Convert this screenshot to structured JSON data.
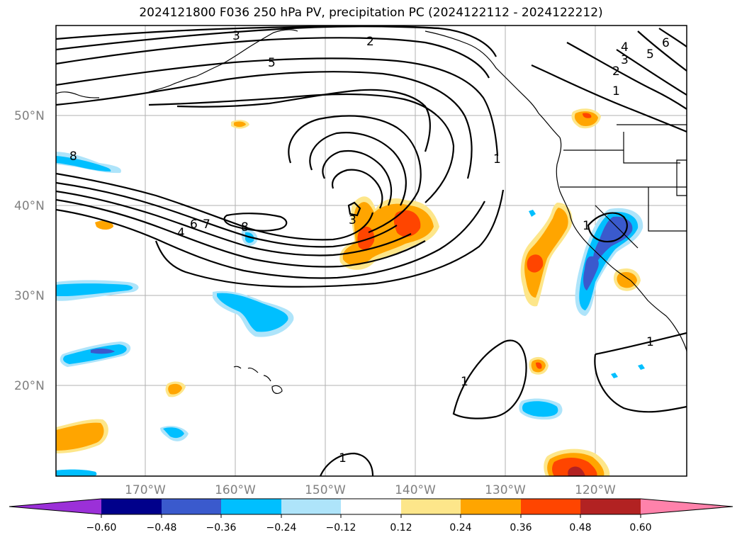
{
  "title": "2024121800 F036 250 hPa PV, precipitation PC (2024122112 - 2024122212)",
  "map": {
    "lat_labels": [
      {
        "label": "50°N",
        "lat": 50
      },
      {
        "label": "40°N",
        "lat": 40
      },
      {
        "label": "30°N",
        "lat": 30
      },
      {
        "label": "20°N",
        "lat": 20
      }
    ],
    "lon_labels": [
      {
        "label": "170°W",
        "lon": -170
      },
      {
        "label": "160°W",
        "lon": -160
      },
      {
        "label": "150°W",
        "lon": -150
      },
      {
        "label": "140°W",
        "lon": -140
      },
      {
        "label": "130°W",
        "lon": -130
      },
      {
        "label": "120°W",
        "lon": -120
      }
    ],
    "contour_labels": [
      "3",
      "2",
      "5",
      "4",
      "3",
      "2",
      "5",
      "6",
      "1",
      "8",
      "7",
      "6",
      "4",
      "8",
      "3",
      "1",
      "1",
      "1",
      "1",
      "1"
    ]
  },
  "colorbar": {
    "ticks": [
      "−0.60",
      "−0.48",
      "−0.36",
      "−0.24",
      "−0.12",
      "0.12",
      "0.24",
      "0.36",
      "0.48",
      "0.60"
    ],
    "colors": [
      "#9b30d8",
      "#00008b",
      "#3a5acd",
      "#00bfff",
      "#aee4fa",
      "#ffffff",
      "#fde68a",
      "#ffa500",
      "#ff4500",
      "#b22222",
      "#ff82ab"
    ]
  }
}
